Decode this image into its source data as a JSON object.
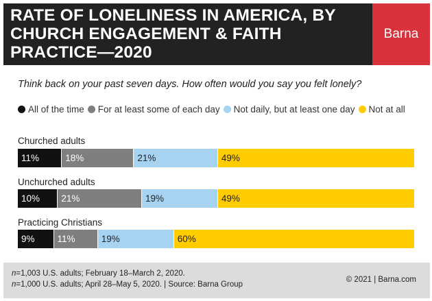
{
  "header": {
    "title": "RATE OF LONELINESS IN AMERICA, BY CHURCH ENGAGEMENT & FAITH PRACTICE—2020",
    "brand": "Barna"
  },
  "question": "Think back on your past seven days. How often would you say you felt lonely?",
  "colors": {
    "header_bg": "#222222",
    "brand_bg": "#d8323a",
    "footer_bg": "#dcdcdc"
  },
  "chart_data": {
    "type": "bar",
    "stacked": true,
    "orientation": "horizontal",
    "title": "RATE OF LONELINESS IN AMERICA, BY CHURCH ENGAGEMENT & FAITH PRACTICE—2020",
    "categories": [
      "Churched adults",
      "Unchurched adults",
      "Practicing Christians"
    ],
    "series": [
      {
        "name": "All of the time",
        "color": "#111111",
        "label_color": "#ffffff",
        "values": [
          11,
          10,
          9
        ]
      },
      {
        "name": "For at least some of each day",
        "color": "#7f7f7f",
        "label_color": "#ffffff",
        "values": [
          18,
          21,
          11
        ]
      },
      {
        "name": "Not daily, but at least one day",
        "color": "#a6d3f2",
        "label_color": "#222222",
        "values": [
          21,
          19,
          19
        ]
      },
      {
        "name": "Not at all",
        "color": "#ffcc00",
        "label_color": "#222222",
        "values": [
          49,
          49,
          60
        ]
      }
    ],
    "legend_position": "top",
    "value_suffix": "%"
  },
  "footer": {
    "n_label": "n",
    "note1": "=1,003 U.S. adults; February 18–March 2, 2020.",
    "note2": "=1,000 U.S. adults; April 28–May 5, 2020. | Source: Barna Group",
    "copyright": "© 2021  |  Barna.com"
  }
}
